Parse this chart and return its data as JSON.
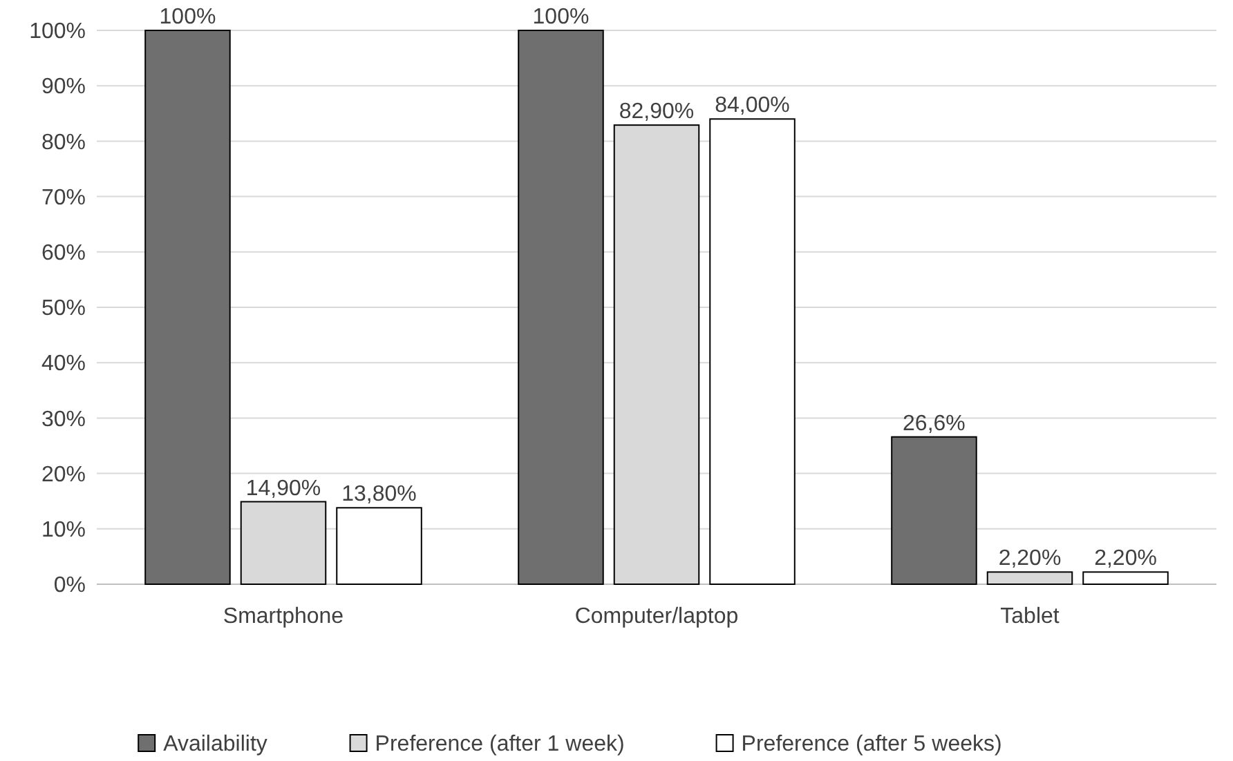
{
  "chart_data": {
    "type": "bar",
    "categories": [
      "Smartphone",
      "Computer/laptop",
      "Tablet"
    ],
    "series": [
      {
        "name": "Availability",
        "color": "#6f6f6f",
        "values": [
          100,
          100,
          26.6
        ],
        "value_labels": [
          "100%",
          "100%",
          "26,6%"
        ]
      },
      {
        "name": "Preference (after 1 week)",
        "color": "#d9d9d9",
        "values": [
          14.9,
          82.9,
          2.2
        ],
        "value_labels": [
          "14,90%",
          "82,90%",
          "2,20%"
        ]
      },
      {
        "name": "Preference (after 5 weeks)",
        "color": "#ffffff",
        "values": [
          13.8,
          84,
          2.2
        ],
        "value_labels": [
          "13,80%",
          "84,00%",
          "2,20%"
        ]
      }
    ],
    "ylim": [
      0,
      100
    ],
    "yticks": [
      {
        "value": 0,
        "label": "0%"
      },
      {
        "value": 10,
        "label": "10%"
      },
      {
        "value": 20,
        "label": "20%"
      },
      {
        "value": 30,
        "label": "30%"
      },
      {
        "value": 40,
        "label": "40%"
      },
      {
        "value": 50,
        "label": "50%"
      },
      {
        "value": 60,
        "label": "60%"
      },
      {
        "value": 70,
        "label": "70%"
      },
      {
        "value": 80,
        "label": "80%"
      },
      {
        "value": 90,
        "label": "90%"
      },
      {
        "value": 100,
        "label": "100%"
      }
    ],
    "grid": "y",
    "legend": "bottom"
  }
}
